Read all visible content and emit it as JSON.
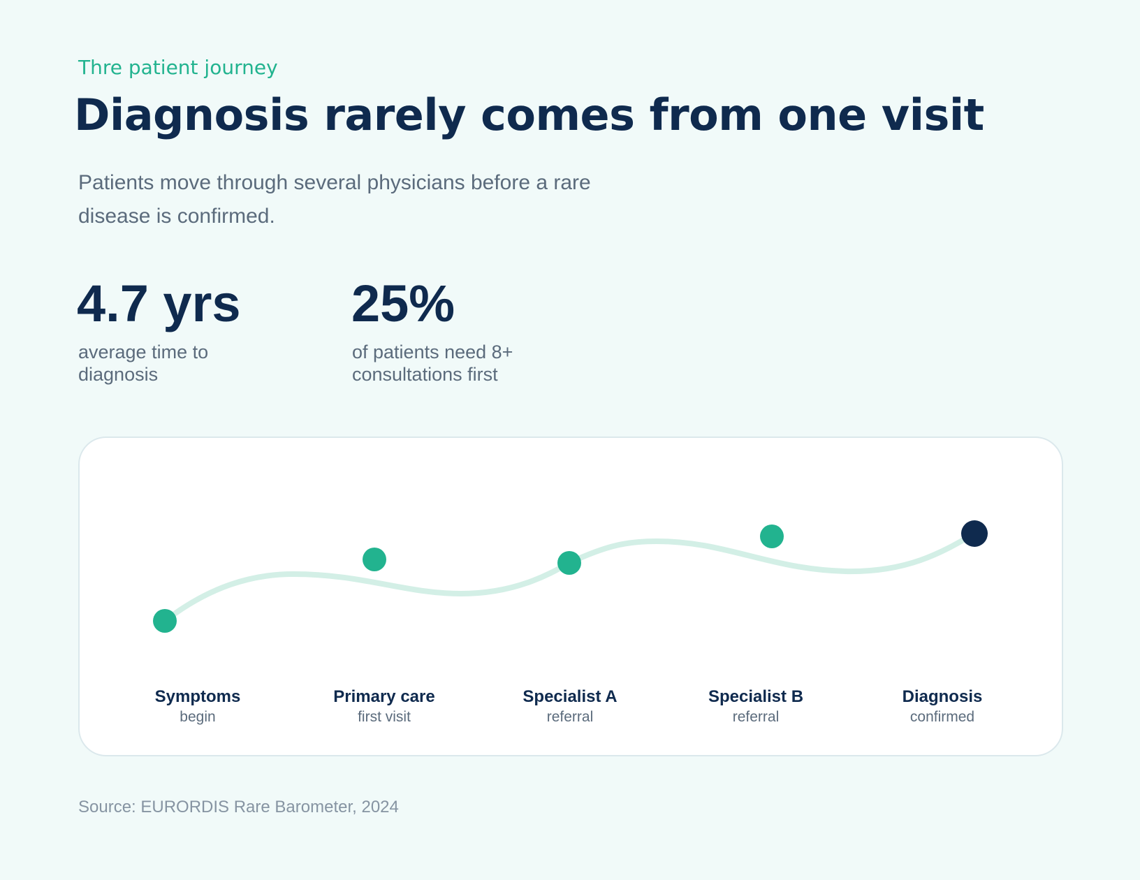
{
  "header": {
    "eyebrow": "Thre patient journey",
    "title": "Diagnosis rarely comes from one visit",
    "subtitle": "Patients move through several physicians before a rare disease is confirmed."
  },
  "stats": [
    {
      "value": "4.7 yrs",
      "label": "average time to diagnosis"
    },
    {
      "value": "25%",
      "label": "of patients need 8+ consultations first"
    }
  ],
  "stages": [
    {
      "title": "Symptoms",
      "subtitle": "begin"
    },
    {
      "title": "Primary care",
      "subtitle": "first visit"
    },
    {
      "title": "Specialist A",
      "subtitle": "referral"
    },
    {
      "title": "Specialist B",
      "subtitle": "referral"
    },
    {
      "title": "Diagnosis",
      "subtitle": "confirmed"
    }
  ],
  "source": "Source: EURORDIS Rare Barometer, 2024"
}
